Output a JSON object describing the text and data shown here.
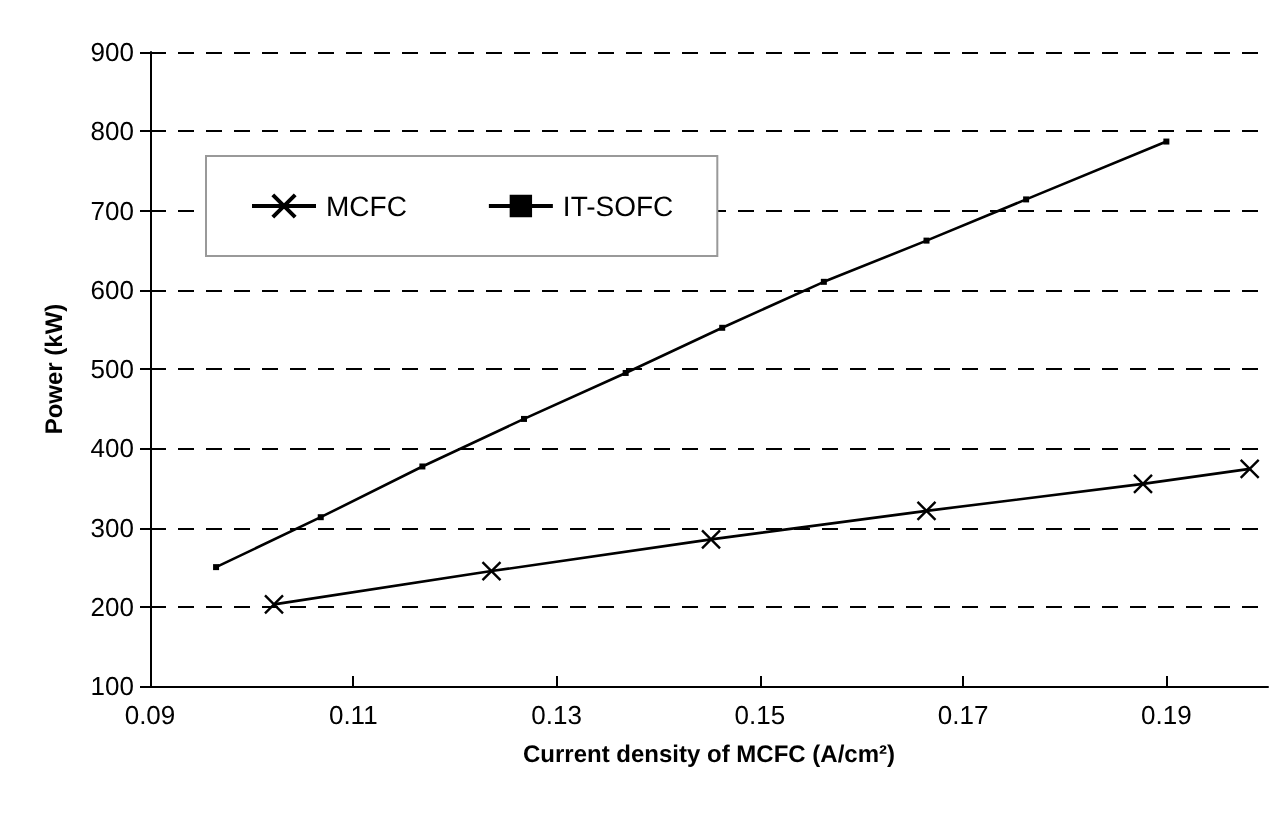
{
  "chart_data": {
    "type": "line",
    "xlabel": "Current density of MCFC (A/cm²)",
    "ylabel": "Power (kW)",
    "xlim": [
      0.09,
      0.2
    ],
    "xticks": [
      0.09,
      0.11,
      0.13,
      0.15,
      0.17,
      0.19
    ],
    "ylim": [
      100,
      900
    ],
    "yticks": [
      100,
      200,
      300,
      400,
      500,
      600,
      700,
      800,
      900
    ],
    "grid": "y",
    "legend": "top left",
    "line_style": "solid",
    "series": [
      {
        "name": "MCFC",
        "color": "#000000",
        "marker": "cross",
        "x": [
          0.1022,
          0.1236,
          0.1452,
          0.1664,
          0.1877,
          0.1982
        ],
        "values": [
          203,
          245,
          285,
          321,
          355,
          374
        ]
      },
      {
        "name": "IT-SOFC",
        "color": "#000000",
        "marker": "square",
        "x": [
          0.0965,
          0.1068,
          0.1168,
          0.1268,
          0.1368,
          0.1463,
          0.1563,
          0.1664,
          0.1762,
          0.19
        ],
        "values": [
          250,
          313,
          377,
          437,
          495,
          552,
          610,
          662,
          714,
          787
        ]
      }
    ]
  }
}
